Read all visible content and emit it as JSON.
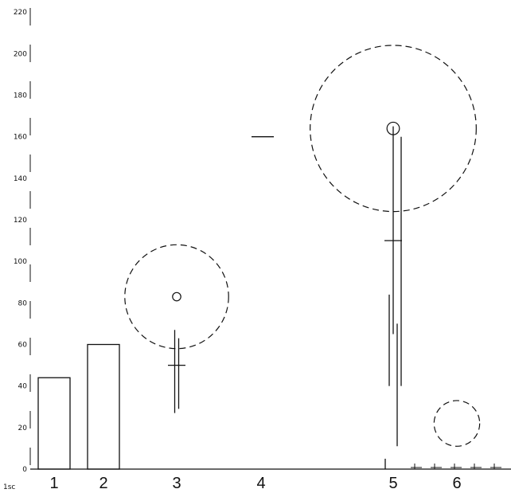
{
  "chart_data": {
    "type": "bar",
    "categories": [
      "1",
      "2",
      "3",
      "4",
      "5",
      "6"
    ],
    "values": [
      44,
      60,
      null,
      null,
      null,
      null
    ],
    "yticks": [
      "0",
      "20",
      "40",
      "60",
      "80",
      "100",
      "120",
      "140",
      "160",
      "180",
      "200",
      "220"
    ],
    "ylim": [
      0,
      222
    ],
    "corner_label": "1sc",
    "overlays": [
      {
        "kind": "circle",
        "category": "3",
        "cy": 83,
        "r": 25,
        "inner_r": 2
      },
      {
        "kind": "circle",
        "category": "5",
        "cy": 164,
        "r": 40,
        "inner_r": 3
      },
      {
        "kind": "circle",
        "category": "6",
        "cy": 22,
        "r": 11
      }
    ],
    "markers": [
      {
        "category": "3",
        "lines": [
          [
            27,
            67
          ],
          [
            29,
            63
          ]
        ],
        "cross_y": 50
      },
      {
        "category": "5",
        "lines": [
          [
            0,
            5
          ],
          [
            40,
            84
          ],
          [
            65,
            165
          ],
          [
            11,
            70
          ],
          [
            40,
            160
          ]
        ],
        "cross_y": 110
      }
    ],
    "grid": false,
    "legend": "none",
    "colors": {
      "stroke": "#111111",
      "background": "#ffffff"
    }
  }
}
